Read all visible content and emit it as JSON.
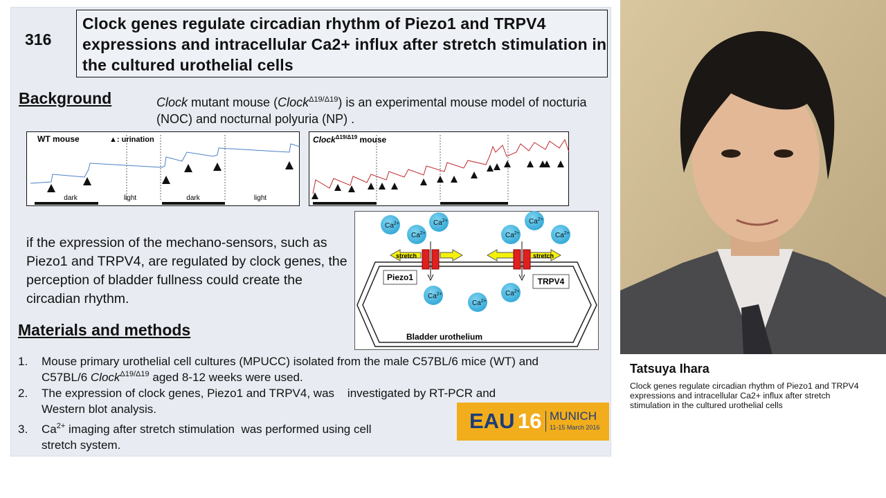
{
  "slide": {
    "number": "316",
    "title": "Clock genes regulate circadian rhythm of Piezo1 and TRPV4 expressions and intracellular Ca2+ influx after stretch stimulation in the cultured urothelial cells",
    "background": {
      "heading": "Background",
      "text": [
        "Clock",
        " mutant mouse (",
        "Clock",
        "Δ19/Δ19",
        ") is an experimental mouse model of nocturia (NOC) and nocturnal polyuria (NP) ."
      ]
    },
    "figure_wt": {
      "label": "WT mouse",
      "legend": "▲: urination",
      "phases": [
        "dark",
        "light",
        "dark",
        "light"
      ]
    },
    "figure_clock": {
      "label": "Clock",
      "superscript": "Δ19/Δ19",
      "suffix": " mouse"
    },
    "hypothesis": "if the expression of the mechano-sensors, such as Piezo1 and TRPV4, are regulated by clock genes, the perception of bladder fullness could create the circadian rhythm.",
    "diagram": {
      "ion": "Ca",
      "ion_charge": "2+",
      "stretch": "stretch",
      "channel_left": "Piezo1",
      "channel_right": "TRPV4",
      "caption": "Bladder urothelium"
    },
    "methods": {
      "heading": "Materials and methods",
      "items": [
        {
          "number": "1.",
          "text": [
            "Mouse primary urothelial cell cultures (MPUCC) isolated from the male C57BL/6 mice (WT) and C57BL/6 ",
            "Clock",
            "Δ19/Δ19",
            " aged 8-12 weeks were used."
          ]
        },
        {
          "number": "2.",
          "text": [
            "The expression of clock genes, Piezo1 and TRPV4, was    investigated by RT-PCR and Western blot analysis."
          ]
        },
        {
          "number": "3.",
          "text": [
            "Ca",
            "2+",
            " imaging after stretch stimulation  was performed using cell stretch system."
          ]
        }
      ]
    },
    "logo": {
      "name": "EAU",
      "year": "16",
      "city": "MUNICH",
      "dates": "11-15 March 2016"
    }
  },
  "speaker": {
    "name": "Tatsuya Ihara",
    "talk_title": "Clock genes regulate circadian rhythm of Piezo1 and TRPV4 expressions and intracellular Ca2+ influx after stretch stimulation in the cultured urothelial cells"
  }
}
